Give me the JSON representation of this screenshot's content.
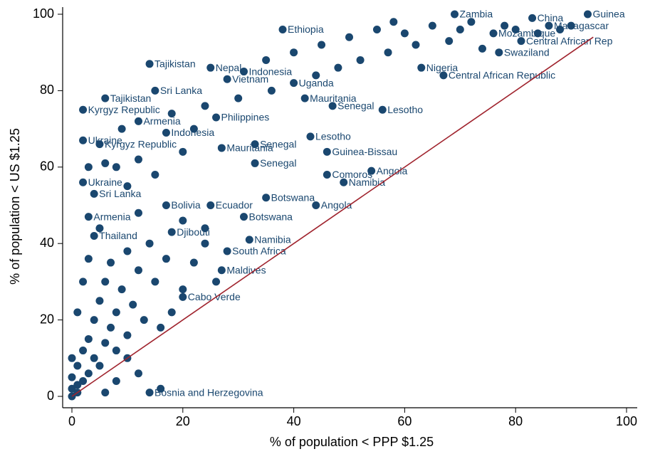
{
  "chart_data": {
    "type": "scatter",
    "xlabel": "% of population < PPP $1.25",
    "ylabel": "% of population < US $1.25",
    "xlim": [
      0,
      100
    ],
    "ylim": [
      0,
      100
    ],
    "xticks": [
      0,
      20,
      40,
      60,
      80,
      100
    ],
    "yticks": [
      0,
      20,
      40,
      60,
      80,
      100
    ],
    "series": [
      {
        "type": "scatter",
        "color": "#1a476f",
        "x": [
          93,
          69,
          83,
          86,
          76,
          81,
          77,
          63,
          67,
          56,
          38,
          14,
          25,
          31,
          28,
          15,
          6,
          2,
          12,
          26,
          2,
          5,
          17,
          33,
          43,
          46,
          27,
          54,
          46,
          49,
          44,
          35,
          31,
          25,
          17,
          2,
          4,
          3,
          4,
          18,
          32,
          28,
          27,
          20,
          14,
          40,
          47,
          33,
          42,
          0,
          0,
          0,
          1,
          1,
          1,
          2,
          2,
          3,
          3,
          4,
          4,
          5,
          5,
          6,
          6,
          7,
          7,
          8,
          8,
          9,
          10,
          10,
          11,
          12,
          13,
          14,
          15,
          16,
          17,
          18,
          20,
          22,
          24,
          26,
          1,
          2,
          0,
          3,
          5,
          8,
          10,
          12,
          15,
          20,
          22,
          30,
          35,
          40,
          45,
          50,
          55,
          58,
          60,
          62,
          65,
          68,
          70,
          72,
          74,
          78,
          80,
          84,
          88,
          90,
          57,
          52,
          48,
          44,
          36,
          24,
          18,
          9,
          6,
          3,
          12,
          20,
          24,
          8,
          12,
          16,
          6,
          10
        ],
        "values": [
          100,
          100,
          99,
          97,
          95,
          93,
          90,
          86,
          84,
          75,
          96,
          87,
          86,
          85,
          83,
          80,
          78,
          75,
          72,
          73,
          67,
          66,
          69,
          66,
          68,
          64,
          65,
          59,
          58,
          56,
          50,
          52,
          47,
          50,
          50,
          56,
          53,
          47,
          42,
          43,
          41,
          38,
          33,
          26,
          1,
          82,
          76,
          61,
          78,
          0,
          2,
          5,
          1,
          3,
          8,
          4,
          12,
          6,
          15,
          10,
          20,
          8,
          25,
          14,
          30,
          18,
          35,
          12,
          22,
          28,
          16,
          38,
          24,
          33,
          20,
          40,
          30,
          18,
          36,
          22,
          28,
          35,
          40,
          30,
          22,
          30,
          10,
          36,
          44,
          60,
          55,
          62,
          58,
          64,
          70,
          78,
          88,
          90,
          92,
          94,
          96,
          98,
          95,
          92,
          97,
          93,
          96,
          98,
          91,
          97,
          96,
          95,
          96,
          97,
          90,
          88,
          86,
          84,
          80,
          76,
          74,
          70,
          61,
          60,
          48,
          46,
          44,
          4,
          6,
          2,
          1,
          10
        ],
        "labels": [
          "Guinea",
          "Zambia",
          "China",
          "Madagascar",
          "Mozambique",
          "Central African Rep",
          "Swaziland",
          "Nigeria",
          "Central African Republic",
          "Lesotho",
          "Ethiopia",
          "Tajikistan",
          "Nepal",
          "Indonesia",
          "Vietnam",
          "Sri Lanka",
          "Tajikistan",
          "Kyrgyz Republic",
          "Armenia",
          "Philippines",
          "Ukraine",
          "Kyrgyz Republic",
          "Indonesia",
          "Senegal",
          "Lesotho",
          "Guinea-Bissau",
          "Mauritania",
          "Angola",
          "Comoros",
          "Namibia",
          "Angola",
          "Botswana",
          "Botswana",
          "Ecuador",
          "Bolivia",
          "Ukraine",
          "Sri Lanka",
          "Armenia",
          "Thailand",
          "Djibouti",
          "Namibia",
          "South Africa",
          "Maldives",
          "Cabo Verde",
          "Bosnia and Herzegovina",
          "Uganda",
          "Senegal",
          "Senegal",
          "Mauritania",
          null,
          null,
          null,
          null,
          null,
          null,
          null,
          null,
          null,
          null,
          null,
          null,
          null,
          null,
          null,
          null,
          null,
          null,
          null,
          null,
          null,
          null,
          null,
          null,
          null,
          null,
          null,
          null,
          null,
          null,
          null,
          null,
          null,
          null,
          null,
          null,
          null,
          null,
          null,
          null,
          null,
          null,
          null,
          null,
          null,
          null,
          null,
          null,
          null,
          null,
          null,
          null,
          null,
          null,
          null,
          null,
          null,
          null,
          null,
          null,
          null,
          null,
          null,
          null,
          null,
          null,
          null,
          null,
          null,
          null,
          null,
          null,
          null,
          null,
          null,
          null,
          null,
          null,
          null,
          null,
          null,
          null,
          null
        ]
      },
      {
        "type": "line",
        "color": "#a0242e",
        "x": [
          0,
          94
        ],
        "values": [
          0,
          94
        ]
      }
    ]
  }
}
